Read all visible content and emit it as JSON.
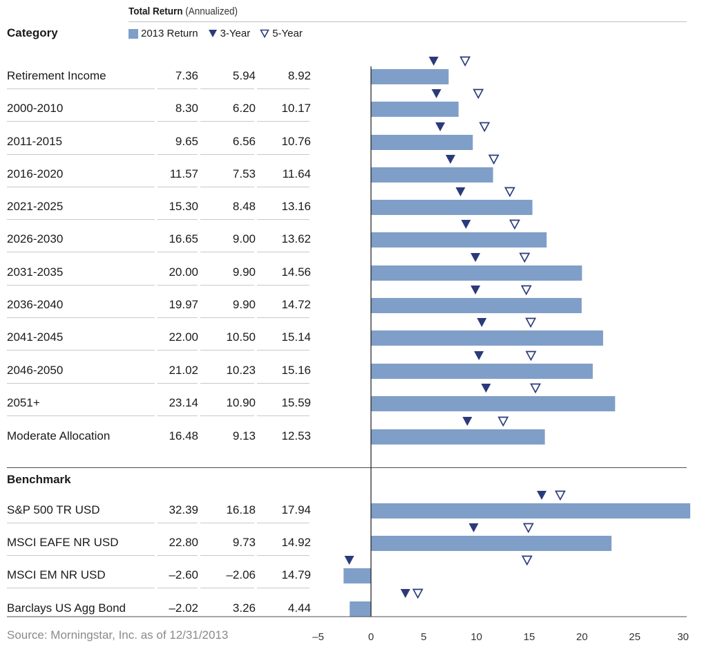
{
  "header": {
    "title_bold": "Total Return",
    "title_rest": " (Annualized)",
    "category_label": "Category",
    "benchmark_label": "Benchmark"
  },
  "legend": {
    "items": [
      {
        "label": "2013 Return",
        "icon": "bar-swatch"
      },
      {
        "label": "3-Year",
        "icon": "filled-triangle-down"
      },
      {
        "label": "5-Year",
        "icon": "hollow-triangle-down"
      }
    ]
  },
  "colors": {
    "bar": "#7f9fc8",
    "marker": "#2b3a7a",
    "axis": "#1a1a1a"
  },
  "source": "Source: Morningstar, Inc. as of 12/31/2013",
  "chart_data": {
    "type": "bar",
    "orientation": "horizontal",
    "title": "Total Return (Annualized)",
    "xlim": [
      -5,
      30
    ],
    "xticks": [
      "–5",
      "0",
      "5",
      "10",
      "15",
      "20",
      "25",
      "30"
    ],
    "xtick_values": [
      -5,
      0,
      5,
      10,
      15,
      20,
      25,
      30
    ],
    "series": [
      {
        "name": "2013 Return",
        "mark": "bar"
      },
      {
        "name": "3-Year",
        "mark": "filled-triangle"
      },
      {
        "name": "5-Year",
        "mark": "hollow-triangle"
      }
    ],
    "groups": [
      {
        "name": "Category",
        "rows": [
          {
            "label": "Retirement Income",
            "r2013": 7.36,
            "y3": 5.94,
            "y5": 8.92,
            "r2013_text": "7.36",
            "y3_text": "5.94",
            "y5_text": "8.92"
          },
          {
            "label": "2000-2010",
            "r2013": 8.3,
            "y3": 6.2,
            "y5": 10.17,
            "r2013_text": "8.30",
            "y3_text": "6.20",
            "y5_text": "10.17"
          },
          {
            "label": "2011-2015",
            "r2013": 9.65,
            "y3": 6.56,
            "y5": 10.76,
            "r2013_text": "9.65",
            "y3_text": "6.56",
            "y5_text": "10.76"
          },
          {
            "label": "2016-2020",
            "r2013": 11.57,
            "y3": 7.53,
            "y5": 11.64,
            "r2013_text": "11.57",
            "y3_text": "7.53",
            "y5_text": "11.64"
          },
          {
            "label": "2021-2025",
            "r2013": 15.3,
            "y3": 8.48,
            "y5": 13.16,
            "r2013_text": "15.30",
            "y3_text": "8.48",
            "y5_text": "13.16"
          },
          {
            "label": "2026-2030",
            "r2013": 16.65,
            "y3": 9.0,
            "y5": 13.62,
            "r2013_text": "16.65",
            "y3_text": "9.00",
            "y5_text": "13.62"
          },
          {
            "label": "2031-2035",
            "r2013": 20.0,
            "y3": 9.9,
            "y5": 14.56,
            "r2013_text": "20.00",
            "y3_text": "9.90",
            "y5_text": "14.56"
          },
          {
            "label": "2036-2040",
            "r2013": 19.97,
            "y3": 9.9,
            "y5": 14.72,
            "r2013_text": "19.97",
            "y3_text": "9.90",
            "y5_text": "14.72"
          },
          {
            "label": "2041-2045",
            "r2013": 22.0,
            "y3": 10.5,
            "y5": 15.14,
            "r2013_text": "22.00",
            "y3_text": "10.50",
            "y5_text": "15.14"
          },
          {
            "label": "2046-2050",
            "r2013": 21.02,
            "y3": 10.23,
            "y5": 15.16,
            "r2013_text": "21.02",
            "y3_text": "10.23",
            "y5_text": "15.16"
          },
          {
            "label": "2051+",
            "r2013": 23.14,
            "y3": 10.9,
            "y5": 15.59,
            "r2013_text": "23.14",
            "y3_text": "10.90",
            "y5_text": "15.59"
          },
          {
            "label": "Moderate Allocation",
            "r2013": 16.48,
            "y3": 9.13,
            "y5": 12.53,
            "r2013_text": "16.48",
            "y3_text": "9.13",
            "y5_text": "12.53"
          }
        ]
      },
      {
        "name": "Benchmark",
        "rows": [
          {
            "label": "S&P 500 TR USD",
            "r2013": 32.39,
            "y3": 16.18,
            "y5": 17.94,
            "r2013_text": "32.39",
            "y3_text": "16.18",
            "y5_text": "17.94"
          },
          {
            "label": "MSCI EAFE NR USD",
            "r2013": 22.8,
            "y3": 9.73,
            "y5": 14.92,
            "r2013_text": "22.80",
            "y3_text": "9.73",
            "y5_text": "14.92"
          },
          {
            "label": "MSCI EM NR USD",
            "r2013": -2.6,
            "y3": -2.06,
            "y5": 14.79,
            "r2013_text": "–2.60",
            "y3_text": "–2.06",
            "y5_text": "14.79"
          },
          {
            "label": "Barclays US Agg Bond",
            "r2013": -2.02,
            "y3": 3.26,
            "y5": 4.44,
            "r2013_text": "–2.02",
            "y3_text": "3.26",
            "y5_text": "4.44"
          }
        ]
      }
    ]
  }
}
